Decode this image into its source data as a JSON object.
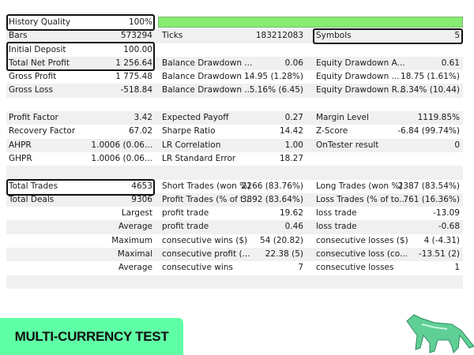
{
  "history_quality": {
    "label": "History Quality",
    "value": "100%",
    "fill_percent": 100
  },
  "rows": [
    [
      "",
      "",
      "",
      "",
      "",
      ""
    ],
    [
      "Bars",
      "573294",
      "Ticks",
      "183212083",
      "Symbols",
      "5"
    ],
    [
      "Initial Deposit",
      "100.00",
      "",
      "",
      "",
      ""
    ],
    [
      "Total Net Profit",
      "1 256.64",
      "Balance Drawdown ...",
      "0.06",
      "Equity Drawdown A...",
      "0.61"
    ],
    [
      "Gross Profit",
      "1 775.48",
      "Balance Drawdown ...",
      "14.95 (1.28%)",
      "Equity Drawdown ...",
      "18.75 (1.61%)"
    ],
    [
      "Gross Loss",
      "-518.84",
      "Balance Drawdown ...",
      "5.16% (6.45)",
      "Equity Drawdown R...",
      "8.34% (10.44)"
    ],
    [
      "",
      "",
      "",
      "",
      "",
      ""
    ],
    [
      "Profit Factor",
      "3.42",
      "Expected Payoff",
      "0.27",
      "Margin Level",
      "1119.85%"
    ],
    [
      "Recovery Factor",
      "67.02",
      "Sharpe Ratio",
      "14.42",
      "Z-Score",
      "-6.84 (99.74%)"
    ],
    [
      "AHPR",
      "1.0006 (0.06...",
      "LR Correlation",
      "1.00",
      "OnTester result",
      "0"
    ],
    [
      "GHPR",
      "1.0006 (0.06...",
      "LR Standard Error",
      "18.27",
      "",
      ""
    ],
    [
      "",
      "",
      "",
      "",
      "",
      ""
    ],
    [
      "Total Trades",
      "4653",
      "Short Trades (won %)",
      "2266 (83.76%)",
      "Long Trades (won %)",
      "2387 (83.54%)"
    ],
    [
      "Total Deals",
      "9306",
      "Profit Trades (% of t...",
      "3892 (83.64%)",
      "Loss Trades (% of to...",
      "761 (16.36%)"
    ],
    [
      "",
      "Largest",
      "profit trade",
      "19.62",
      "loss trade",
      "-13.09"
    ],
    [
      "",
      "Average",
      "profit trade",
      "0.46",
      "loss trade",
      "-0.68"
    ],
    [
      "",
      "Maximum",
      "consecutive wins ($)",
      "54 (20.82)",
      "consecutive losses ($)",
      "4 (-4.31)"
    ],
    [
      "",
      "Maximal",
      "consecutive profit (...",
      "22.38 (5)",
      "consecutive loss (co...",
      "-13.51 (2)"
    ],
    [
      "",
      "Average",
      "consecutive wins",
      "7",
      "consecutive losses",
      "1"
    ],
    [
      "",
      "",
      "",
      "",
      "",
      ""
    ]
  ],
  "badge": "MULTI-CURRENCY TEST",
  "colors": {
    "quality_bar": "#86ec72",
    "badge": "#5fffa5",
    "highlight_border": "#111111"
  }
}
